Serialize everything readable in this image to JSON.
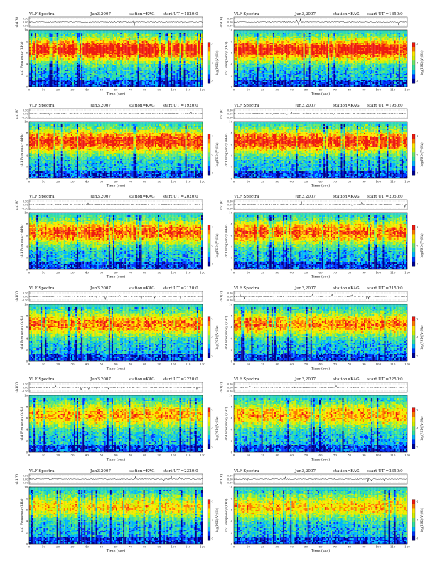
{
  "page": {
    "header_label": "VLF Spectra",
    "station_text": "station=KAG",
    "start_ut_prefix": "start  UT =",
    "wave_axis_label": "ch1(V)",
    "wave_ticks": [
      "0.50",
      "0.00",
      "-0.50"
    ],
    "freq_axis_label": "ch1 Frequency (kHz)",
    "freq_ticks": [
      "0",
      "2",
      "4",
      "6",
      "8",
      "10"
    ],
    "time_axis_label": "Time (sec)",
    "time_ticks": [
      "0",
      "10",
      "20",
      "30",
      "40",
      "50",
      "60",
      "70",
      "80",
      "90",
      "100",
      "110",
      "120"
    ],
    "colorbar_label": "log(PSD)(V²/Hz)",
    "colorbar_ticks": [
      "-1",
      "-3",
      "-5"
    ]
  },
  "chart_data": [
    {
      "type": "heatmap",
      "title_date": "Jun3,2007",
      "start_ut": "1820:0",
      "xlim": [
        0,
        120
      ],
      "ylim": [
        0,
        10
      ],
      "xlabel": "Time (sec)",
      "ylabel": "Frequency (kHz)",
      "band_top_khz": 9.5
    },
    {
      "type": "heatmap",
      "title_date": "Jun3,2007",
      "start_ut": "1850:0",
      "xlim": [
        0,
        120
      ],
      "ylim": [
        0,
        10
      ],
      "xlabel": "Time (sec)",
      "ylabel": "Frequency (kHz)",
      "band_top_khz": 9.5
    },
    {
      "type": "heatmap",
      "title_date": "Jun3,2007",
      "start_ut": "1920:0",
      "xlim": [
        0,
        120
      ],
      "ylim": [
        0,
        10
      ],
      "xlabel": "Time (sec)",
      "ylabel": "Frequency (kHz)",
      "band_top_khz": 9.5
    },
    {
      "type": "heatmap",
      "title_date": "Jun3,2007",
      "start_ut": "1950:0",
      "xlim": [
        0,
        120
      ],
      "ylim": [
        0,
        10
      ],
      "xlabel": "Time (sec)",
      "ylabel": "Frequency (kHz)",
      "band_top_khz": 9.5
    },
    {
      "type": "heatmap",
      "title_date": "Jun3,2007",
      "start_ut": "2020:0",
      "xlim": [
        0,
        120
      ],
      "ylim": [
        0,
        10
      ],
      "xlabel": "Time (sec)",
      "ylabel": "Frequency (kHz)",
      "band_top_khz": 9.5
    },
    {
      "type": "heatmap",
      "title_date": "Jun3,2007",
      "start_ut": "2050:0",
      "xlim": [
        0,
        120
      ],
      "ylim": [
        0,
        10
      ],
      "xlabel": "Time (sec)",
      "ylabel": "Frequency (kHz)",
      "band_top_khz": 9.5
    },
    {
      "type": "heatmap",
      "title_date": "Jun3,2007",
      "start_ut": "2120:0",
      "xlim": [
        0,
        120
      ],
      "ylim": [
        0,
        10
      ],
      "xlabel": "Time (sec)",
      "ylabel": "Frequency (kHz)",
      "band_top_khz": 9.5
    },
    {
      "type": "heatmap",
      "title_date": "Jun3,2007",
      "start_ut": "2150:0",
      "xlim": [
        0,
        120
      ],
      "ylim": [
        0,
        10
      ],
      "xlabel": "Time (sec)",
      "ylabel": "Frequency (kHz)",
      "band_top_khz": 9.5
    },
    {
      "type": "heatmap",
      "title_date": "Jun3,2007",
      "start_ut": "2220:0",
      "xlim": [
        0,
        120
      ],
      "ylim": [
        0,
        10
      ],
      "xlabel": "Time (sec)",
      "ylabel": "Frequency (kHz)",
      "band_top_khz": 9.5
    },
    {
      "type": "heatmap",
      "title_date": "Jun3,2007",
      "start_ut": "2250:0",
      "xlim": [
        0,
        120
      ],
      "ylim": [
        0,
        10
      ],
      "xlabel": "Time (sec)",
      "ylabel": "Frequency (kHz)",
      "band_top_khz": 9.5
    },
    {
      "type": "heatmap",
      "title_date": "Jun3,2007",
      "start_ut": "2320:0",
      "xlim": [
        0,
        120
      ],
      "ylim": [
        0,
        10
      ],
      "xlabel": "Time (sec)",
      "ylabel": "Frequency (kHz)",
      "band_top_khz": 9.5
    },
    {
      "type": "heatmap",
      "title_date": "Jun3,2007",
      "start_ut": "2350:0",
      "xlim": [
        0,
        120
      ],
      "ylim": [
        0,
        10
      ],
      "xlabel": "Time (sec)",
      "ylabel": "Frequency (kHz)",
      "band_top_khz": 9.5
    }
  ],
  "colors": {
    "colormap": [
      "#00008f",
      "#0033ff",
      "#00b4ff",
      "#33e0a0",
      "#6fe86a",
      "#d4f000",
      "#ffe600",
      "#ff7a00",
      "#ee1a10"
    ],
    "top_band": "#2fd0c8",
    "waveform": "#111111"
  }
}
